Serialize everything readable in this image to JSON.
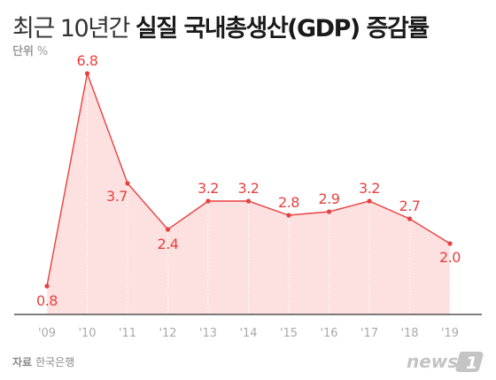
{
  "title": {
    "part1": "최근 10년간 ",
    "part2": "실질 국내총생산(GDP) 증감률"
  },
  "unit": {
    "label": "단위",
    "symbol": "%"
  },
  "source": {
    "label": "자료",
    "value": "한국은행"
  },
  "logo": {
    "text": "news",
    "mark": "1"
  },
  "colors": {
    "line": "#e8403f",
    "fill": "#fde1e0",
    "label": "#e8403f",
    "tick": "#aaaaaa",
    "axis": "#333333"
  },
  "chart_data": {
    "type": "area",
    "x": [
      "'09",
      "'10",
      "'11",
      "'12",
      "'13",
      "'14",
      "'15",
      "'16",
      "'17",
      "'18",
      "'19"
    ],
    "values": [
      0.8,
      6.8,
      3.7,
      2.4,
      3.2,
      3.2,
      2.8,
      2.9,
      3.2,
      2.7,
      2.0
    ],
    "value_labels": [
      "0.8",
      "6.8",
      "3.7",
      "2.4",
      "3.2",
      "3.2",
      "2.8",
      "2.9",
      "3.2",
      "2.7",
      "2.0"
    ],
    "ylim": [
      0,
      7.2
    ],
    "grid": false
  }
}
